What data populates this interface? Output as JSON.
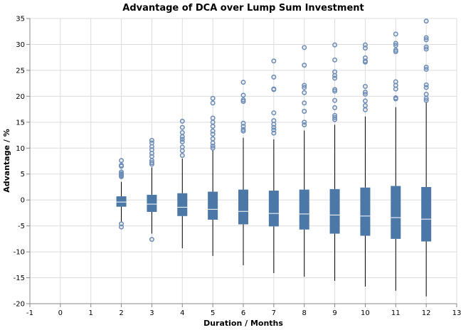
{
  "chart_data": {
    "type": "boxplot",
    "title": "Advantage of DCA over Lump Sum Investment",
    "xlabel": "Duration / Months",
    "ylabel": "Advantage / %",
    "xlim": [
      -1,
      13
    ],
    "ylim": [
      -20,
      35
    ],
    "x_ticks": [
      -1,
      0,
      1,
      2,
      3,
      4,
      5,
      6,
      7,
      8,
      9,
      10,
      11,
      12,
      13
    ],
    "y_ticks": [
      -20,
      -15,
      -10,
      -5,
      0,
      5,
      10,
      15,
      20,
      25,
      30,
      35
    ],
    "grid": true,
    "color": "#4c78a8",
    "outlier_color": "#6f8fb8",
    "median_color": "#ffffff",
    "boxes": [
      {
        "x": 2,
        "whisker_low": -4.2,
        "q1": -1.3,
        "median": -0.4,
        "q3": 0.7,
        "whisker_high": 3.5,
        "outliers": [
          7.6,
          6.7,
          6.5,
          5.4,
          5.1,
          4.9,
          4.7,
          4.5,
          -4.6,
          -5.2
        ]
      },
      {
        "x": 3,
        "whisker_low": -6.5,
        "q1": -2.3,
        "median": -0.8,
        "q3": 1.0,
        "whisker_high": 6.3,
        "outliers": [
          11.5,
          11.0,
          10.3,
          9.7,
          9.0,
          8.4,
          7.6,
          7.2,
          6.9,
          -7.6
        ]
      },
      {
        "x": 4,
        "whisker_low": -9.3,
        "q1": -3.1,
        "median": -1.4,
        "q3": 1.3,
        "whisker_high": 8.0,
        "outliers": [
          15.2,
          14.0,
          13.0,
          12.2,
          11.7,
          11.2,
          10.2,
          9.5,
          8.6
        ]
      },
      {
        "x": 5,
        "whisker_low": -10.8,
        "q1": -3.8,
        "median": -1.8,
        "q3": 1.6,
        "whisker_high": 9.6,
        "outliers": [
          19.6,
          18.7,
          15.8,
          15.0,
          14.2,
          13.3,
          12.7,
          11.8,
          11.0,
          10.4,
          10.0
        ]
      },
      {
        "x": 6,
        "whisker_low": -12.6,
        "q1": -4.7,
        "median": -2.2,
        "q3": 2.0,
        "whisker_high": 12.0,
        "outliers": [
          22.7,
          20.2,
          19.3,
          19.0,
          14.8,
          14.2,
          13.6,
          13.3
        ]
      },
      {
        "x": 7,
        "whisker_low": -14.1,
        "q1": -5.1,
        "median": -2.6,
        "q3": 1.8,
        "whisker_high": 11.7,
        "outliers": [
          26.8,
          23.7,
          21.4,
          21.3,
          16.8,
          15.3,
          14.6,
          14.0,
          13.5,
          12.9
        ]
      },
      {
        "x": 8,
        "whisker_low": -14.8,
        "q1": -5.7,
        "median": -2.7,
        "q3": 2.0,
        "whisker_high": 13.4,
        "outliers": [
          29.4,
          26.0,
          22.1,
          21.7,
          20.7,
          18.7,
          17.1,
          15.0,
          14.5
        ]
      },
      {
        "x": 9,
        "whisker_low": -15.6,
        "q1": -6.5,
        "median": -2.9,
        "q3": 2.1,
        "whisker_high": 14.5,
        "outliers": [
          29.9,
          27.0,
          24.7,
          24.0,
          23.5,
          21.3,
          21.0,
          19.2,
          17.8,
          16.3,
          15.9,
          15.5
        ]
      },
      {
        "x": 10,
        "whisker_low": -16.7,
        "q1": -6.9,
        "median": -3.1,
        "q3": 2.4,
        "whisker_high": 16.1,
        "outliers": [
          29.9,
          29.3,
          27.4,
          26.8,
          26.6,
          21.9,
          20.8,
          20.4,
          19.1,
          18.2,
          17.4
        ]
      },
      {
        "x": 11,
        "whisker_low": -17.5,
        "q1": -7.5,
        "median": -3.4,
        "q3": 2.7,
        "whisker_high": 17.9,
        "outliers": [
          32.0,
          30.2,
          29.8,
          28.9,
          28.6,
          22.8,
          22.1,
          21.4,
          19.7,
          19.5
        ]
      },
      {
        "x": 12,
        "whisker_low": -18.6,
        "q1": -8.0,
        "median": -3.7,
        "q3": 2.5,
        "whisker_high": 19.0,
        "outliers": [
          34.5,
          31.3,
          30.9,
          29.5,
          29.1,
          25.6,
          25.2,
          22.2,
          21.7,
          20.4,
          19.6,
          19.2
        ]
      }
    ]
  }
}
